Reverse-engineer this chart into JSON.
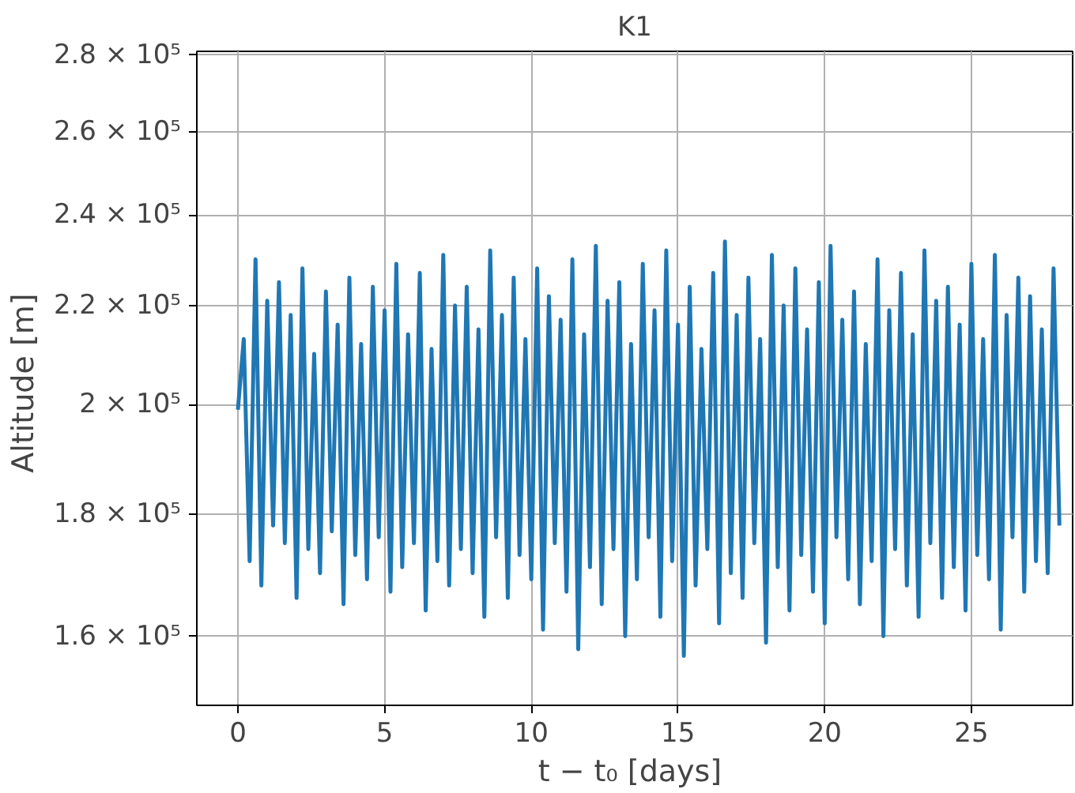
{
  "chart_data": {
    "type": "line",
    "title": "K1",
    "xlabel": "t − t₀  [days]",
    "ylabel": "Altitude  [m]",
    "log": "y",
    "grid": true,
    "marker": "none",
    "line_style": "solid",
    "xlim": [
      -1.4,
      28.45
    ],
    "xticks": [
      0,
      5,
      10,
      15,
      20,
      25
    ],
    "ylim": [
      149700,
      281000
    ],
    "yticks": [
      {
        "value": 160000,
        "label": "1.6 × 10⁵"
      },
      {
        "value": 180000,
        "label": "1.8 × 10⁵"
      },
      {
        "value": 200000,
        "label": "2 × 10⁵"
      },
      {
        "value": 220000,
        "label": "2.2 × 10⁵"
      },
      {
        "value": 240000,
        "label": "2.4 × 10⁵"
      },
      {
        "value": 260000,
        "label": "2.6 × 10⁵"
      },
      {
        "value": 280000,
        "label": "2.8 × 10⁵"
      }
    ],
    "x": [
      0,
      0.2,
      0.4,
      0.6,
      0.8,
      1,
      1.2,
      1.4,
      1.6,
      1.8,
      2,
      2.2,
      2.4,
      2.6,
      2.8,
      3,
      3.2,
      3.4,
      3.6,
      3.8,
      4,
      4.2,
      4.4,
      4.6,
      4.8,
      5,
      5.2,
      5.4,
      5.6,
      5.8,
      6,
      6.2,
      6.4,
      6.6,
      6.8,
      7,
      7.2,
      7.4,
      7.6,
      7.8,
      8,
      8.2,
      8.4,
      8.6,
      8.8,
      9,
      9.2,
      9.4,
      9.6,
      9.8,
      10,
      10.2,
      10.4,
      10.6,
      10.8,
      11,
      11.2,
      11.4,
      11.6,
      11.8,
      12,
      12.2,
      12.4,
      12.6,
      12.8,
      13,
      13.2,
      13.4,
      13.6,
      13.8,
      14,
      14.2,
      14.4,
      14.6,
      14.8,
      15,
      15.2,
      15.4,
      15.6,
      15.8,
      16,
      16.2,
      16.4,
      16.6,
      16.8,
      17,
      17.2,
      17.4,
      17.6,
      17.8,
      18,
      18.2,
      18.4,
      18.6,
      18.8,
      19,
      19.2,
      19.4,
      19.6,
      19.8,
      20,
      20.2,
      20.4,
      20.6,
      20.8,
      21,
      21.2,
      21.4,
      21.6,
      21.8,
      22,
      22.2,
      22.4,
      22.6,
      22.8,
      23,
      23.2,
      23.4,
      23.6,
      23.8,
      24,
      24.2,
      24.4,
      24.6,
      24.8,
      25,
      25.2,
      25.4,
      25.6,
      25.8,
      26,
      26.2,
      26.4,
      26.6,
      26.8,
      27,
      27.2,
      27.4,
      27.6,
      27.8,
      28
    ],
    "series": [
      {
        "color": "#1f77b4",
        "values": [
          199000,
          213000,
          172000,
          230000,
          168000,
          221000,
          178000,
          225000,
          175000,
          218000,
          166000,
          228000,
          174000,
          210000,
          170000,
          223000,
          177000,
          216000,
          165000,
          226000,
          173000,
          212000,
          169000,
          224000,
          176000,
          219000,
          167000,
          229000,
          171000,
          214000,
          175000,
          227000,
          164000,
          211000,
          172000,
          231000,
          168000,
          220000,
          174000,
          224000,
          170000,
          215000,
          163000,
          232000,
          176000,
          218000,
          166000,
          226000,
          173000,
          213000,
          169000,
          228000,
          161000,
          222000,
          175000,
          217000,
          167000,
          230000,
          158000,
          214000,
          171000,
          233000,
          165000,
          221000,
          174000,
          225000,
          160000,
          212000,
          169000,
          229000,
          176000,
          219000,
          163000,
          232000,
          172000,
          216000,
          157000,
          224000,
          168000,
          211000,
          174000,
          227000,
          162000,
          234000,
          170000,
          218000,
          166000,
          226000,
          175000,
          213000,
          159000,
          231000,
          171000,
          220000,
          164000,
          228000,
          173000,
          215000,
          167000,
          225000,
          162000,
          233000,
          176000,
          217000,
          169000,
          223000,
          165000,
          212000,
          172000,
          230000,
          160000,
          219000,
          174000,
          227000,
          168000,
          214000,
          163000,
          232000,
          175000,
          221000,
          166000,
          224000,
          171000,
          216000,
          164000,
          229000,
          173000,
          213000,
          169000,
          231000,
          161000,
          218000,
          176000,
          226000,
          167000,
          222000,
          172000,
          215000,
          170000,
          228000,
          178000
        ]
      }
    ]
  }
}
